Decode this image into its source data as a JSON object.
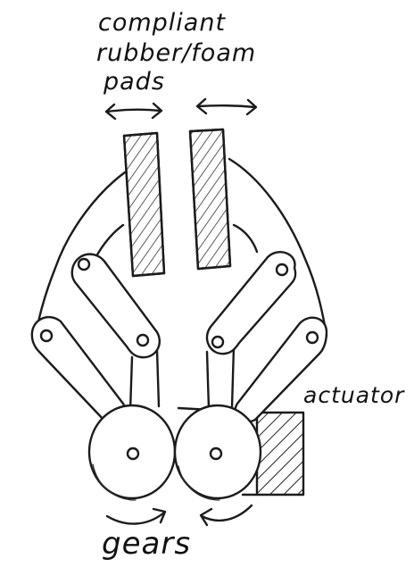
{
  "labels": {
    "pads": [
      "compliant",
      "rubber/foam",
      "pads"
    ],
    "actuator": "actuator",
    "gears": "gears"
  },
  "colors": {
    "ink": "#1b1b1b",
    "paper": "#ffffff"
  }
}
